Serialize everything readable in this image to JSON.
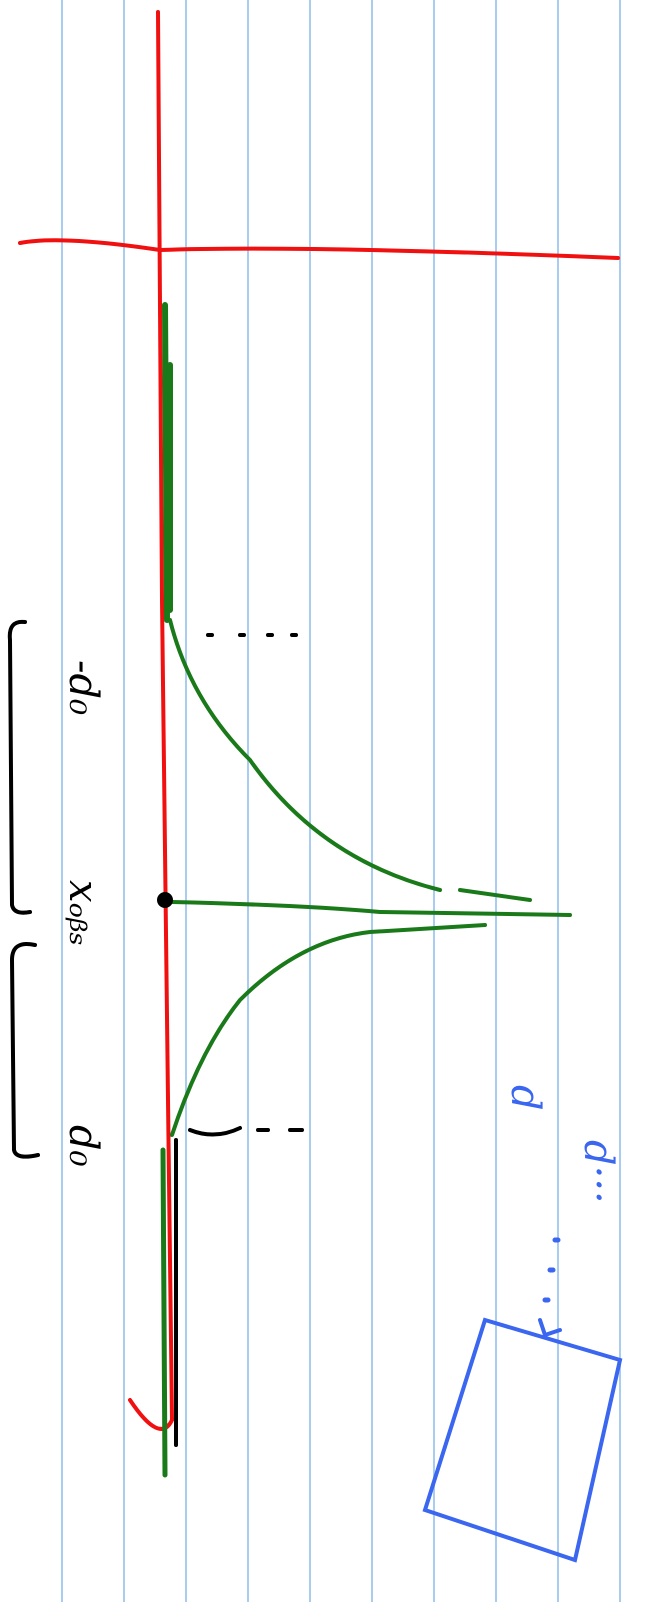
{
  "labels": {
    "neg_d0": "-d₀",
    "x_obs": "xₒᵦₛ",
    "d0": "d₀",
    "d_blue": "d",
    "d_dots": "d···"
  }
}
